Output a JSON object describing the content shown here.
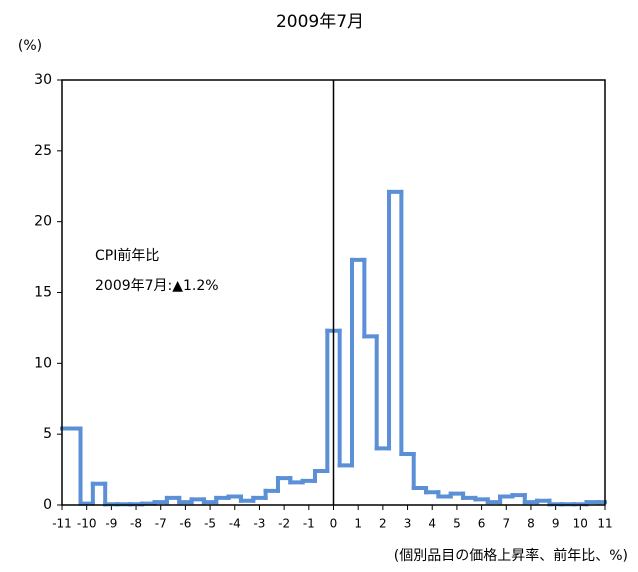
{
  "chart_data": {
    "type": "histogram",
    "title": "2009年7月",
    "ylabel": "(%)",
    "xlabel": "(個別品目の価格上昇率、前年比、%)",
    "annotations": [
      "CPI前年比",
      "2009年7月:▲1.2%"
    ],
    "color": "#5b8fd6",
    "bins": [
      -11,
      -10.25,
      -9.75,
      -9.25,
      -8.75,
      -8.25,
      -7.75,
      -7.25,
      -6.75,
      -6.25,
      -5.75,
      -5.25,
      -4.75,
      -4.25,
      -3.75,
      -3.25,
      -2.75,
      -2.25,
      -1.75,
      -1.25,
      -0.75,
      -0.25,
      0.25,
      0.75,
      1.25,
      1.75,
      2.25,
      2.75,
      3.25,
      3.75,
      4.25,
      4.75,
      5.25,
      5.75,
      6.25,
      6.75,
      7.25,
      7.75,
      8.25,
      8.75,
      9.25,
      9.75,
      10.25,
      10.75,
      11
    ],
    "values": [
      5.4,
      0.1,
      1.5,
      0.05,
      0.05,
      0.05,
      0.1,
      0.2,
      0.5,
      0.2,
      0.4,
      0.2,
      0.5,
      0.6,
      0.3,
      0.5,
      1.0,
      1.9,
      1.6,
      1.7,
      2.4,
      12.3,
      2.8,
      17.3,
      11.9,
      4.0,
      22.1,
      3.6,
      1.2,
      0.9,
      0.6,
      0.8,
      0.5,
      0.4,
      0.2,
      0.6,
      0.7,
      0.2,
      0.3,
      0.05,
      0.05,
      0.05,
      0.2,
      0.2
    ],
    "xlim": [
      -11,
      11
    ],
    "xticks": [
      -11,
      -10,
      -9,
      -8,
      -7,
      -6,
      -5,
      -4,
      -3,
      -2,
      -1,
      0,
      1,
      2,
      3,
      4,
      5,
      6,
      7,
      8,
      9,
      10,
      11
    ],
    "ylim": [
      0,
      30
    ],
    "yticks": [
      0,
      5,
      10,
      15,
      20,
      25,
      30
    ]
  }
}
